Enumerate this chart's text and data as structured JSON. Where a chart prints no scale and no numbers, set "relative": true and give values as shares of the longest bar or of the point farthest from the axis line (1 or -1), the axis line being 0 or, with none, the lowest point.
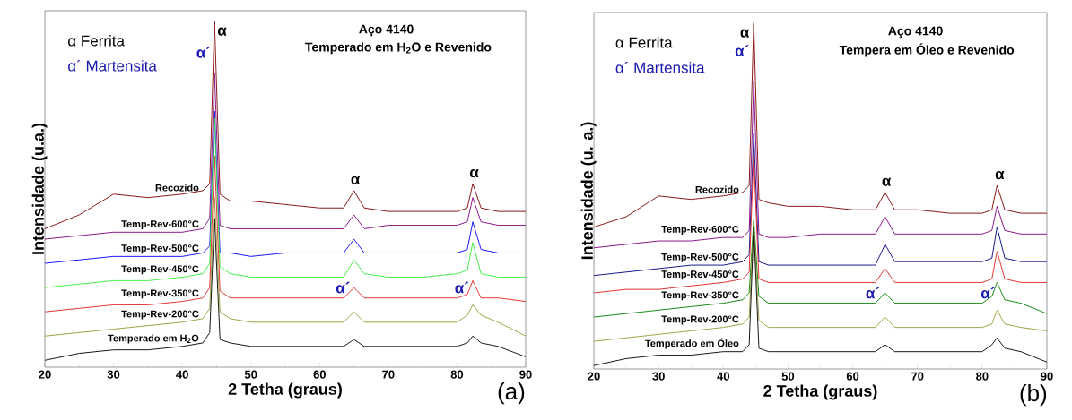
{
  "chart_data": [
    {
      "type": "line",
      "relative": true,
      "title": "Aço 4140",
      "subtitle": "Temperado em H$_{2}$O e Revenido",
      "xlabel": "2 Tetha (graus)",
      "ylabel": "Intensidade (u.a.)",
      "xlim": [
        20,
        90
      ],
      "xticks": [
        20,
        30,
        40,
        50,
        60,
        70,
        80,
        90
      ],
      "x": [
        20,
        25,
        30,
        35,
        40,
        43,
        44,
        44.7,
        45.5,
        47,
        50,
        55,
        60,
        63.5,
        65,
        66.5,
        70,
        75,
        80,
        81.5,
        82.3,
        83.5,
        86,
        90
      ],
      "series": [
        {
          "name": "Recozido",
          "color": "#800000",
          "values": [
            0.4,
            0.44,
            0.5,
            0.49,
            0.5,
            0.51,
            0.53,
            1.0,
            0.5,
            0.48,
            0.48,
            0.47,
            0.46,
            0.46,
            0.51,
            0.46,
            0.45,
            0.45,
            0.45,
            0.46,
            0.53,
            0.46,
            0.45,
            0.45
          ]
        },
        {
          "name": "Temp-Rev-600°C",
          "color": "#800080",
          "values": [
            0.37,
            0.38,
            0.39,
            0.39,
            0.39,
            0.4,
            0.43,
            0.85,
            0.41,
            0.4,
            0.4,
            0.4,
            0.4,
            0.4,
            0.44,
            0.4,
            0.41,
            0.41,
            0.41,
            0.42,
            0.49,
            0.42,
            0.41,
            0.41
          ]
        },
        {
          "name": "Temp-Rev-500°C",
          "color": "#0000ff",
          "values": [
            0.3,
            0.31,
            0.32,
            0.32,
            0.32,
            0.33,
            0.35,
            0.74,
            0.33,
            0.33,
            0.32,
            0.33,
            0.33,
            0.33,
            0.37,
            0.33,
            0.33,
            0.33,
            0.33,
            0.34,
            0.42,
            0.34,
            0.33,
            0.33
          ]
        },
        {
          "name": "Temp-Rev-450°C",
          "color": "#33ee33",
          "values": [
            0.23,
            0.24,
            0.25,
            0.25,
            0.26,
            0.27,
            0.3,
            0.72,
            0.29,
            0.27,
            0.26,
            0.26,
            0.26,
            0.26,
            0.31,
            0.27,
            0.26,
            0.26,
            0.27,
            0.28,
            0.36,
            0.27,
            0.26,
            0.26
          ]
        },
        {
          "name": "Temp-Rev-350°C",
          "color": "#e02020",
          "values": [
            0.16,
            0.17,
            0.18,
            0.18,
            0.19,
            0.2,
            0.23,
            0.61,
            0.22,
            0.2,
            0.2,
            0.2,
            0.2,
            0.2,
            0.23,
            0.2,
            0.2,
            0.2,
            0.2,
            0.21,
            0.25,
            0.2,
            0.2,
            0.19
          ]
        },
        {
          "name": "Temp-Rev-200°C",
          "color": "#999933",
          "values": [
            0.09,
            0.1,
            0.11,
            0.12,
            0.13,
            0.14,
            0.17,
            0.49,
            0.16,
            0.14,
            0.13,
            0.13,
            0.13,
            0.13,
            0.16,
            0.13,
            0.13,
            0.13,
            0.13,
            0.15,
            0.18,
            0.15,
            0.13,
            0.09
          ]
        },
        {
          "name": "Temperado em H$_{2}$O",
          "color": "#000000",
          "values": [
            0.02,
            0.04,
            0.05,
            0.05,
            0.06,
            0.07,
            0.1,
            0.43,
            0.08,
            0.07,
            0.06,
            0.06,
            0.06,
            0.06,
            0.08,
            0.06,
            0.06,
            0.06,
            0.06,
            0.07,
            0.09,
            0.07,
            0.06,
            0.03
          ]
        }
      ],
      "annotations": [
        "α Ferrita",
        "α´ Martensita",
        "(a)",
        "α",
        "α´",
        "α",
        "α",
        "α´",
        "α´"
      ]
    },
    {
      "type": "line",
      "relative": true,
      "title": "Aço 4140",
      "subtitle": "Tempera em Óleo e Revenido",
      "xlabel": "2 Tetha (graus)",
      "ylabel": "Intensidade (u. a.)",
      "xlim": [
        20,
        90
      ],
      "xticks": [
        20,
        30,
        40,
        50,
        60,
        70,
        80,
        90
      ],
      "x": [
        20,
        25,
        30,
        35,
        40,
        43,
        44,
        44.7,
        45.5,
        47,
        50,
        55,
        60,
        63.5,
        65,
        66.5,
        70,
        75,
        80,
        81.5,
        82.3,
        83.5,
        86,
        90
      ],
      "series": [
        {
          "name": "Recozido",
          "color": "#800000",
          "values": [
            0.41,
            0.44,
            0.5,
            0.49,
            0.5,
            0.51,
            0.53,
            1.0,
            0.49,
            0.48,
            0.47,
            0.47,
            0.46,
            0.46,
            0.51,
            0.46,
            0.46,
            0.45,
            0.45,
            0.46,
            0.53,
            0.46,
            0.45,
            0.45
          ]
        },
        {
          "name": "Temp-Rev-600°C",
          "color": "#800080",
          "values": [
            0.35,
            0.36,
            0.37,
            0.37,
            0.38,
            0.38,
            0.4,
            0.83,
            0.39,
            0.38,
            0.38,
            0.39,
            0.39,
            0.39,
            0.44,
            0.39,
            0.39,
            0.39,
            0.39,
            0.4,
            0.47,
            0.4,
            0.39,
            0.39
          ]
        },
        {
          "name": "Temp-Rev-500°C",
          "color": "#000080",
          "values": [
            0.27,
            0.28,
            0.29,
            0.3,
            0.3,
            0.31,
            0.33,
            0.68,
            0.31,
            0.3,
            0.3,
            0.3,
            0.3,
            0.3,
            0.36,
            0.31,
            0.31,
            0.31,
            0.31,
            0.32,
            0.41,
            0.32,
            0.31,
            0.31
          ]
        },
        {
          "name": "Temp-Rev-450°C",
          "color": "#e02020",
          "values": [
            0.22,
            0.23,
            0.23,
            0.24,
            0.25,
            0.26,
            0.28,
            0.62,
            0.26,
            0.25,
            0.25,
            0.25,
            0.25,
            0.25,
            0.29,
            0.25,
            0.25,
            0.25,
            0.25,
            0.26,
            0.34,
            0.26,
            0.25,
            0.25
          ]
        },
        {
          "name": "Temp-Rev-350°C",
          "color": "#008000",
          "values": [
            0.15,
            0.16,
            0.17,
            0.18,
            0.19,
            0.2,
            0.22,
            0.43,
            0.21,
            0.19,
            0.19,
            0.19,
            0.19,
            0.19,
            0.22,
            0.19,
            0.19,
            0.19,
            0.19,
            0.21,
            0.25,
            0.2,
            0.19,
            0.16
          ]
        },
        {
          "name": "Temp-Rev-200°C",
          "color": "#999933",
          "values": [
            0.08,
            0.09,
            0.1,
            0.11,
            0.12,
            0.13,
            0.15,
            0.42,
            0.14,
            0.12,
            0.12,
            0.12,
            0.12,
            0.12,
            0.15,
            0.12,
            0.12,
            0.12,
            0.12,
            0.13,
            0.17,
            0.13,
            0.12,
            0.11
          ]
        },
        {
          "name": "Temperado em Óleo",
          "color": "#000000",
          "values": [
            0.01,
            0.03,
            0.04,
            0.04,
            0.05,
            0.05,
            0.07,
            0.41,
            0.06,
            0.05,
            0.05,
            0.05,
            0.05,
            0.05,
            0.07,
            0.05,
            0.05,
            0.05,
            0.05,
            0.07,
            0.09,
            0.06,
            0.05,
            0.02
          ]
        }
      ],
      "annotations": [
        "α Ferrita",
        "α´ Martensita",
        "(b)",
        "α",
        "α´",
        "α",
        "α",
        "α´",
        "α´"
      ]
    }
  ]
}
